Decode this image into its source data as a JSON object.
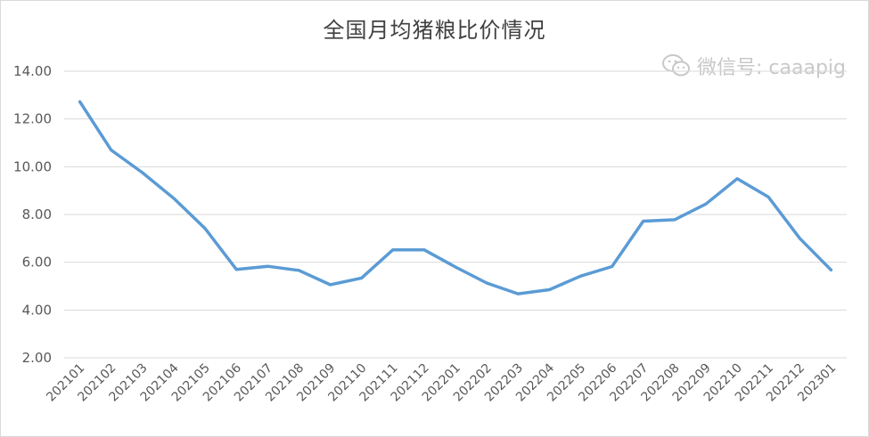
{
  "chart_data": {
    "type": "line",
    "title": "全国月均猪粮比价情况",
    "xlabel": "",
    "ylabel": "",
    "ylim": [
      2.0,
      14.0
    ],
    "yticks": [
      "2.00",
      "4.00",
      "6.00",
      "8.00",
      "10.00",
      "12.00",
      "14.00"
    ],
    "grid": true,
    "legend": "none",
    "line_color": "#5b9bd5",
    "categories": [
      "202101",
      "202102",
      "202103",
      "202104",
      "202105",
      "202106",
      "202107",
      "202108",
      "202109",
      "202110",
      "202111",
      "202112",
      "202201",
      "202202",
      "202203",
      "202204",
      "202205",
      "202206",
      "202207",
      "202208",
      "202209",
      "202210",
      "202211",
      "202212",
      "202301"
    ],
    "series": [
      {
        "values": [
          12.72,
          10.7,
          9.75,
          8.68,
          7.42,
          5.7,
          5.83,
          5.66,
          5.06,
          5.34,
          6.52,
          6.52,
          5.8,
          5.13,
          4.68,
          4.85,
          5.42,
          5.82,
          7.72,
          7.78,
          8.44,
          9.5,
          8.73,
          7.0,
          5.68
        ]
      }
    ]
  },
  "watermark": {
    "text": "微信号: caaapig",
    "icon": "wechat-icon"
  }
}
